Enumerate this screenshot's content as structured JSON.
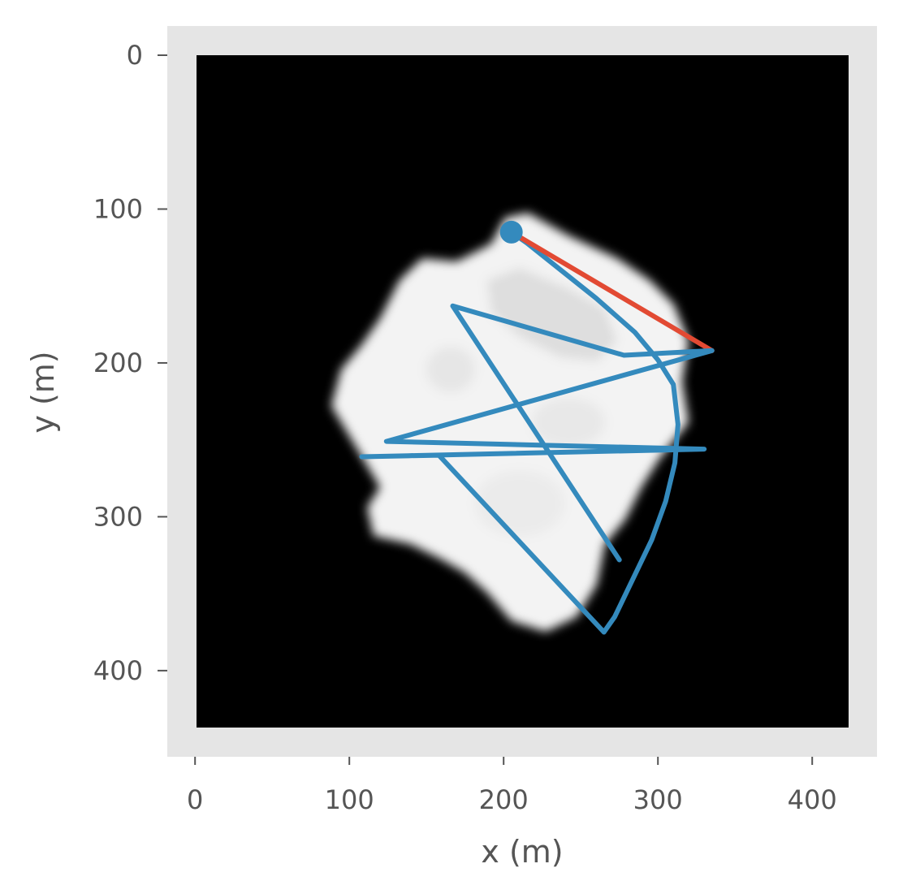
{
  "chart_data": {
    "type": "line",
    "xlabel": "x (m)",
    "ylabel": "y (m)",
    "xlim": [
      -18,
      442
    ],
    "ylim": [
      456,
      -19
    ],
    "y_inverted": true,
    "image_extent": {
      "x": [
        0,
        423
      ],
      "y": [
        0,
        437
      ]
    },
    "xticks": [
      0,
      100,
      200,
      300,
      400
    ],
    "yticks": [
      0,
      100,
      200,
      300,
      400
    ],
    "grid": false,
    "background": "heightmap image (white blob on black)",
    "colors": {
      "axes_bg": "#e5e5e5",
      "image_bg": "#000000",
      "blob": "#f2f2f2",
      "tick": "#555555",
      "path": "#348abd",
      "segment": "#e24a33"
    },
    "series": [
      {
        "color": "#348abd",
        "marker_start": true,
        "x": [
          205,
          215,
          235,
          260,
          285,
          300,
          310,
          313,
          311,
          305,
          296,
          284,
          272,
          265,
          158,
          108,
          330,
          124,
          335
        ],
        "y": [
          115,
          122,
          138,
          158,
          180,
          198,
          214,
          240,
          265,
          290,
          315,
          340,
          365,
          375,
          260,
          261,
          256,
          251,
          192
        ]
      },
      {
        "color": "#e24a33",
        "x": [
          205,
          335
        ],
        "y": [
          115,
          192
        ]
      },
      {
        "color": "#348abd",
        "x": [
          335,
          278,
          167,
          275
        ],
        "y": [
          192,
          195,
          163,
          328
        ]
      }
    ]
  }
}
